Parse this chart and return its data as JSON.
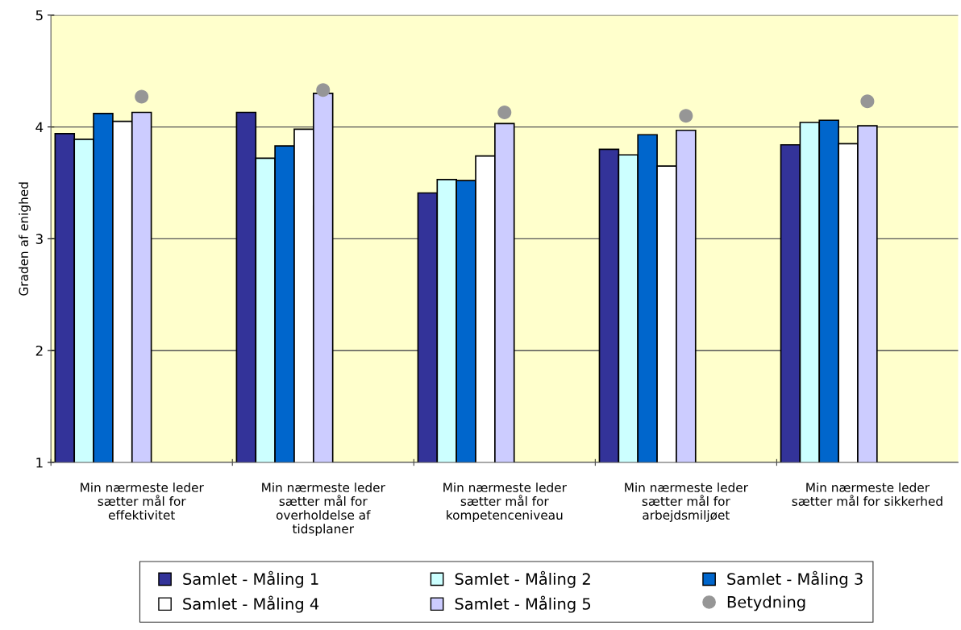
{
  "chart_data": {
    "type": "bar",
    "ylabel": "Graden af enighed",
    "categories": [
      "Min nærmeste leder\nsætter mål for\neffektivitet",
      "Min nærmeste leder\nsætter mål for\noverholdelse af\ntidsplaner",
      "Min nærmeste leder\nsætter mål for\nkompetenceniveau",
      "Min nærmeste leder\nsætter mål for\narbejdsmiljøet",
      "Min nærmeste leder\nsætter mål for sikkerhed"
    ],
    "series": [
      {
        "name": "Samlet - Måling 1",
        "color": "#333399",
        "values": [
          3.94,
          4.13,
          3.41,
          3.8,
          3.84
        ]
      },
      {
        "name": "Samlet - Måling 2",
        "color": "#ccffff",
        "values": [
          3.89,
          3.72,
          3.53,
          3.75,
          4.04
        ]
      },
      {
        "name": "Samlet - Måling 3",
        "color": "#0066cc",
        "values": [
          4.12,
          3.83,
          3.52,
          3.93,
          4.06
        ]
      },
      {
        "name": "Samlet - Måling 4",
        "color": "#ffffff",
        "values": [
          4.05,
          3.98,
          3.74,
          3.65,
          3.85
        ]
      },
      {
        "name": "Samlet - Måling 5",
        "color": "#ccccff",
        "values": [
          4.13,
          4.3,
          4.03,
          3.97,
          4.01
        ]
      },
      {
        "name": "Betydning",
        "type": "scatter",
        "marker": "circle",
        "color": "#969696",
        "values": [
          4.27,
          4.33,
          4.13,
          4.1,
          4.23
        ]
      }
    ],
    "ylim": [
      1,
      5
    ],
    "yticks": [
      1,
      2,
      3,
      4,
      5
    ],
    "grid": "y",
    "legend": "bottom"
  }
}
